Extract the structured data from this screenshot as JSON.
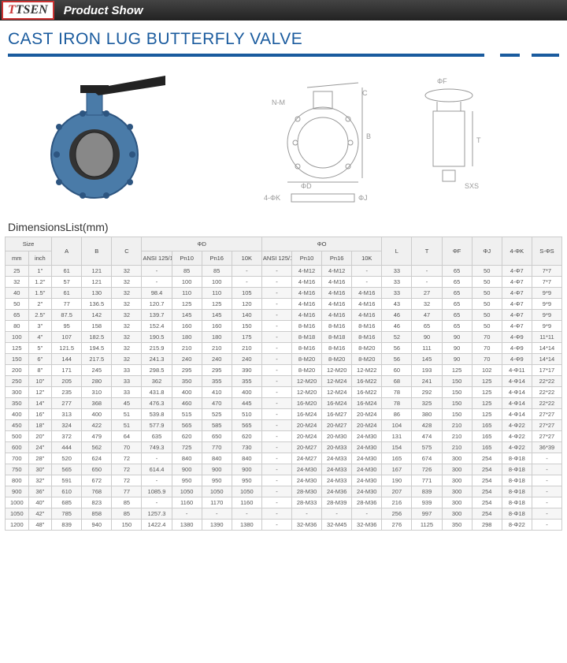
{
  "header": {
    "logo_t": "T",
    "logo_rest": "TSEN",
    "label": "Product Show"
  },
  "title": "CAST IRON LUG BUTTERFLY VALVE",
  "dimTitle": "DimensionsList(mm)",
  "table": {
    "head1": {
      "size": "Size",
      "a": "A",
      "b": "B",
      "c": "C",
      "phiD": "ΦD",
      "phiO": "ΦO",
      "l": "L",
      "t": "T",
      "phiF": "ΦF",
      "phiJ": "ΦJ",
      "k4": "4-ΦK",
      "s": "S-ΦS"
    },
    "head2": {
      "mm": "mm",
      "inch": "inch",
      "ansi": "ANSI 125/150",
      "pn10": "Pn10",
      "pn16": "Pn16",
      "k10": "10K",
      "ansi2": "ANSI 125/150",
      "p10": "Pn10",
      "p16": "Pn16",
      "k10b": "10K"
    },
    "rows": [
      [
        "25",
        "1\"",
        "61",
        "121",
        "32",
        "-",
        "85",
        "85",
        "-",
        "-",
        "4-M12",
        "4-M12",
        "-",
        "33",
        "-",
        "65",
        "50",
        "4-Φ7",
        "7*7"
      ],
      [
        "32",
        "1.2\"",
        "57",
        "121",
        "32",
        "-",
        "100",
        "100",
        "-",
        "-",
        "4-M16",
        "4-M16",
        "-",
        "33",
        "-",
        "65",
        "50",
        "4-Φ7",
        "7*7"
      ],
      [
        "40",
        "1.5\"",
        "61",
        "130",
        "32",
        "98.4",
        "110",
        "110",
        "105",
        "-",
        "4-M16",
        "4-M16",
        "4-M16",
        "33",
        "27",
        "65",
        "50",
        "4-Φ7",
        "9*9"
      ],
      [
        "50",
        "2\"",
        "77",
        "136.5",
        "32",
        "120.7",
        "125",
        "125",
        "120",
        "-",
        "4-M16",
        "4-M16",
        "4-M16",
        "43",
        "32",
        "65",
        "50",
        "4-Φ7",
        "9*9"
      ],
      [
        "65",
        "2.5\"",
        "87.5",
        "142",
        "32",
        "139.7",
        "145",
        "145",
        "140",
        "-",
        "4-M16",
        "4-M16",
        "4-M16",
        "46",
        "47",
        "65",
        "50",
        "4-Φ7",
        "9*9"
      ],
      [
        "80",
        "3\"",
        "95",
        "158",
        "32",
        "152.4",
        "160",
        "160",
        "150",
        "-",
        "8-M16",
        "8-M16",
        "8-M16",
        "46",
        "65",
        "65",
        "50",
        "4-Φ7",
        "9*9"
      ],
      [
        "100",
        "4\"",
        "107",
        "182.5",
        "32",
        "190.5",
        "180",
        "180",
        "175",
        "-",
        "8-M18",
        "8-M18",
        "8-M16",
        "52",
        "90",
        "90",
        "70",
        "4-Φ9",
        "11*11"
      ],
      [
        "125",
        "5\"",
        "121.5",
        "194.5",
        "32",
        "215.9",
        "210",
        "210",
        "210",
        "-",
        "8-M16",
        "8-M16",
        "8-M20",
        "56",
        "111",
        "90",
        "70",
        "4-Φ9",
        "14*14"
      ],
      [
        "150",
        "6\"",
        "144",
        "217.5",
        "32",
        "241.3",
        "240",
        "240",
        "240",
        "-",
        "8-M20",
        "8-M20",
        "8-M20",
        "56",
        "145",
        "90",
        "70",
        "4-Φ9",
        "14*14"
      ],
      [
        "200",
        "8\"",
        "171",
        "245",
        "33",
        "298.5",
        "295",
        "295",
        "390",
        "-",
        "8-M20",
        "12-M20",
        "12-M22",
        "60",
        "193",
        "125",
        "102",
        "4-Φ11",
        "17*17"
      ],
      [
        "250",
        "10\"",
        "205",
        "280",
        "33",
        "362",
        "350",
        "355",
        "355",
        "-",
        "12-M20",
        "12-M24",
        "16-M22",
        "68",
        "241",
        "150",
        "125",
        "4-Φ14",
        "22*22"
      ],
      [
        "300",
        "12\"",
        "235",
        "310",
        "33",
        "431.8",
        "400",
        "410",
        "400",
        "-",
        "12-M20",
        "12-M24",
        "16-M22",
        "78",
        "292",
        "150",
        "125",
        "4-Φ14",
        "22*22"
      ],
      [
        "350",
        "14\"",
        "277",
        "368",
        "45",
        "476.3",
        "460",
        "470",
        "445",
        "-",
        "16-M20",
        "16-M24",
        "16-M24",
        "78",
        "325",
        "150",
        "125",
        "4-Φ14",
        "22*22"
      ],
      [
        "400",
        "16\"",
        "313",
        "400",
        "51",
        "539.8",
        "515",
        "525",
        "510",
        "-",
        "16-M24",
        "16-M27",
        "20-M24",
        "86",
        "380",
        "150",
        "125",
        "4-Φ14",
        "27*27"
      ],
      [
        "450",
        "18\"",
        "324",
        "422",
        "51",
        "577.9",
        "565",
        "585",
        "565",
        "-",
        "20-M24",
        "20-M27",
        "20-M24",
        "104",
        "428",
        "210",
        "165",
        "4-Φ22",
        "27*27"
      ],
      [
        "500",
        "20\"",
        "372",
        "479",
        "64",
        "635",
        "620",
        "650",
        "620",
        "-",
        "20-M24",
        "20-M30",
        "24-M30",
        "131",
        "474",
        "210",
        "165",
        "4-Φ22",
        "27*27"
      ],
      [
        "600",
        "24\"",
        "444",
        "562",
        "70",
        "749.3",
        "725",
        "770",
        "730",
        "-",
        "20-M27",
        "20-M33",
        "24-M30",
        "154",
        "575",
        "210",
        "165",
        "4-Φ22",
        "36*39"
      ],
      [
        "700",
        "28\"",
        "520",
        "624",
        "72",
        "-",
        "840",
        "840",
        "840",
        "-",
        "24-M27",
        "24-M33",
        "24-M30",
        "165",
        "674",
        "300",
        "254",
        "8-Φ18",
        "-"
      ],
      [
        "750",
        "30\"",
        "565",
        "650",
        "72",
        "614.4",
        "900",
        "900",
        "900",
        "-",
        "24-M30",
        "24-M33",
        "24-M30",
        "167",
        "726",
        "300",
        "254",
        "8-Φ18",
        "-"
      ],
      [
        "800",
        "32\"",
        "591",
        "672",
        "72",
        "-",
        "950",
        "950",
        "950",
        "-",
        "24-M30",
        "24-M33",
        "24-M30",
        "190",
        "771",
        "300",
        "254",
        "8-Φ18",
        "-"
      ],
      [
        "900",
        "36\"",
        "610",
        "768",
        "77",
        "1085.9",
        "1050",
        "1050",
        "1050",
        "-",
        "28-M30",
        "24-M36",
        "24-M30",
        "207",
        "839",
        "300",
        "254",
        "8-Φ18",
        "-"
      ],
      [
        "1000",
        "40\"",
        "685",
        "823",
        "85",
        "-",
        "1160",
        "1170",
        "1160",
        "-",
        "28-M33",
        "28-M39",
        "28-M36",
        "216",
        "939",
        "300",
        "254",
        "8-Φ18",
        "-"
      ],
      [
        "1050",
        "42\"",
        "785",
        "858",
        "85",
        "1257.3",
        "-",
        "-",
        "-",
        "-",
        "-",
        "-",
        "-",
        "256",
        "997",
        "300",
        "254",
        "8-Φ18",
        "-"
      ],
      [
        "1200",
        "48\"",
        "839",
        "940",
        "150",
        "1422.4",
        "1380",
        "1390",
        "1380",
        "-",
        "32-M36",
        "32-M45",
        "32-M36",
        "276",
        "1125",
        "350",
        "298",
        "8-Φ22",
        "-"
      ]
    ]
  }
}
